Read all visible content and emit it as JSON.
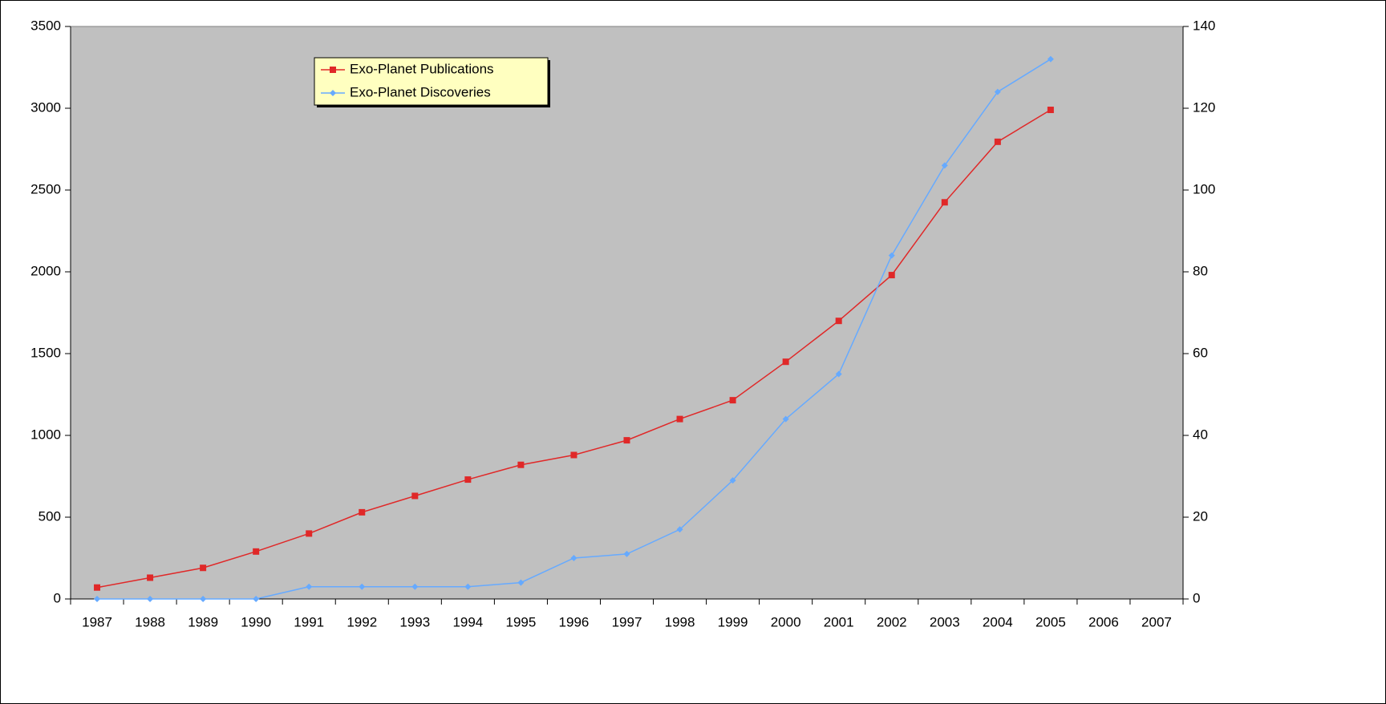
{
  "chart_data": {
    "type": "line",
    "categories": [
      "1987",
      "1988",
      "1989",
      "1990",
      "1991",
      "1992",
      "1993",
      "1994",
      "1995",
      "1996",
      "1997",
      "1998",
      "1999",
      "2000",
      "2001",
      "2002",
      "2003",
      "2004",
      "2005",
      "2006",
      "2007"
    ],
    "series": [
      {
        "name": "Exo-Planet Publications",
        "color": "#e02828",
        "marker": "square",
        "values": [
          70,
          130,
          190,
          290,
          400,
          530,
          630,
          730,
          820,
          880,
          970,
          1100,
          1215,
          1450,
          1700,
          1980,
          2425,
          2795,
          2990,
          null,
          null
        ]
      },
      {
        "name": "Exo-Planet Discoveries",
        "color": "#66aaff",
        "marker": "diamond",
        "axis": "y2",
        "values": [
          0,
          0,
          0,
          0,
          3,
          3,
          3,
          3,
          4,
          10,
          11,
          17,
          29,
          44,
          55,
          84,
          106,
          124,
          132,
          null,
          null
        ]
      }
    ],
    "ylim": [
      0,
      3500
    ],
    "yticks": [
      0,
      500,
      1000,
      1500,
      2000,
      2500,
      3000,
      3500
    ],
    "y2lim": [
      0,
      140
    ],
    "y2ticks": [
      0,
      20,
      40,
      60,
      80,
      100,
      120,
      140
    ],
    "grid": false,
    "legend": "upper left",
    "plot_background": "#c0c0c0",
    "legend_background": "#ffffc0"
  }
}
